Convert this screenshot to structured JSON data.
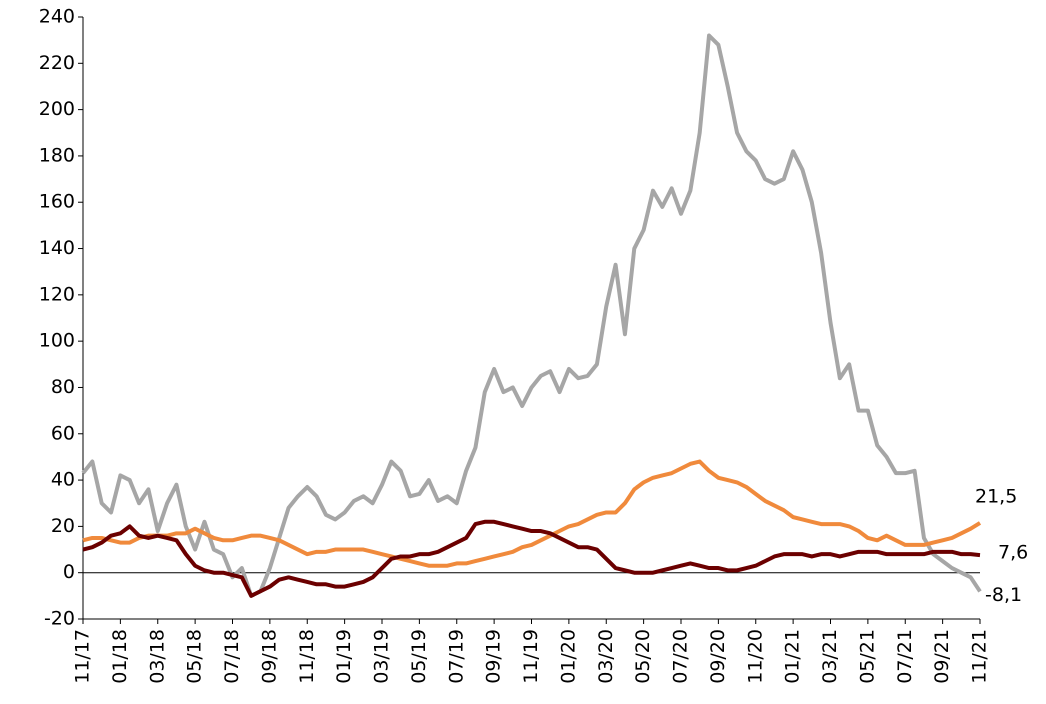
{
  "chart_data": {
    "type": "line",
    "categories": [
      "11/17",
      null,
      null,
      null,
      "01/18",
      null,
      null,
      null,
      "03/18",
      null,
      null,
      null,
      "05/18",
      null,
      null,
      null,
      "07/18",
      null,
      null,
      null,
      "09/18",
      null,
      null,
      null,
      "11/18",
      null,
      null,
      null,
      "01/19",
      null,
      null,
      null,
      "03/19",
      null,
      null,
      null,
      "05/19",
      null,
      null,
      null,
      "07/19",
      null,
      null,
      null,
      "09/19",
      null,
      null,
      null,
      "11/19",
      null,
      null,
      null,
      "01/20",
      null,
      null,
      null,
      "03/20",
      null,
      null,
      null,
      "05/20",
      null,
      null,
      null,
      "07/20",
      null,
      null,
      null,
      "09/20",
      null,
      null,
      null,
      "11/20",
      null,
      null,
      null,
      "01/21",
      null,
      null,
      null,
      "03/21",
      null,
      null,
      null,
      "05/21",
      null,
      null,
      null,
      "07/21",
      null,
      null,
      null,
      "09/21",
      null,
      null,
      null,
      "11/21"
    ],
    "series": [
      {
        "color": "#a6a6a6",
        "values": [
          43,
          48,
          30,
          26,
          42,
          40,
          30,
          36,
          18,
          30,
          38,
          20,
          10,
          22,
          10,
          8,
          -2,
          2,
          -10,
          -8,
          2,
          15,
          28,
          33,
          37,
          33,
          25,
          23,
          26,
          31,
          33,
          30,
          38,
          48,
          44,
          33,
          34,
          40,
          31,
          33,
          30,
          44,
          54,
          78,
          88,
          78,
          80,
          72,
          80,
          85,
          87,
          78,
          88,
          84,
          85,
          90,
          115,
          133,
          103,
          140,
          148,
          165,
          158,
          166,
          155,
          165,
          190,
          232,
          228,
          210,
          190,
          182,
          178,
          170,
          168,
          170,
          182,
          174,
          160,
          138,
          108,
          84,
          90,
          70,
          70,
          55,
          50,
          43,
          43,
          44,
          15,
          8,
          5,
          2,
          0,
          -2,
          -8.1
        ],
        "value_labels": [
          null,
          null,
          null,
          null,
          null,
          null,
          null,
          null,
          null,
          null,
          null,
          null,
          null,
          null,
          null,
          null,
          null,
          null,
          null,
          null,
          null,
          null,
          null,
          null,
          null,
          null,
          null,
          null,
          null,
          null,
          null,
          null,
          null,
          null,
          null,
          null,
          null,
          null,
          null,
          null,
          null,
          null,
          null,
          null,
          null,
          null,
          null,
          null,
          null,
          null,
          null,
          null,
          null,
          null,
          null,
          null,
          null,
          null,
          null,
          null,
          null,
          null,
          null,
          null,
          null,
          null,
          null,
          null,
          null,
          null,
          null,
          null,
          null,
          null,
          null,
          null,
          null,
          null,
          null,
          null,
          null,
          null,
          null,
          null,
          null,
          null,
          null,
          null,
          null,
          null,
          null,
          null,
          null,
          null,
          null,
          null,
          "-8,1"
        ]
      },
      {
        "color": "#f08a3c",
        "values": [
          14,
          15,
          15,
          14,
          13,
          13,
          15,
          16,
          16,
          16,
          17,
          17,
          19,
          17,
          15,
          14,
          14,
          15,
          16,
          16,
          15,
          14,
          12,
          10,
          8,
          9,
          9,
          10,
          10,
          10,
          10,
          9,
          8,
          7,
          6,
          5,
          4,
          3,
          3,
          3,
          4,
          4,
          5,
          6,
          7,
          8,
          9,
          11,
          12,
          14,
          16,
          18,
          20,
          21,
          23,
          25,
          26,
          26,
          30,
          36,
          39,
          41,
          42,
          43,
          45,
          47,
          48,
          44,
          41,
          40,
          39,
          37,
          34,
          31,
          29,
          27,
          24,
          23,
          22,
          21,
          21,
          21,
          20,
          18,
          15,
          14,
          16,
          14,
          12,
          12,
          12,
          13,
          14,
          15,
          17,
          19,
          21.5
        ],
        "value_labels": [
          null,
          null,
          null,
          null,
          null,
          null,
          null,
          null,
          null,
          null,
          null,
          null,
          null,
          null,
          null,
          null,
          null,
          null,
          null,
          null,
          null,
          null,
          null,
          null,
          null,
          null,
          null,
          null,
          null,
          null,
          null,
          null,
          null,
          null,
          null,
          null,
          null,
          null,
          null,
          null,
          null,
          null,
          null,
          null,
          null,
          null,
          null,
          null,
          null,
          null,
          null,
          null,
          null,
          null,
          null,
          null,
          null,
          null,
          null,
          null,
          null,
          null,
          null,
          null,
          null,
          null,
          null,
          null,
          null,
          null,
          null,
          null,
          null,
          null,
          null,
          null,
          null,
          null,
          null,
          null,
          null,
          null,
          null,
          null,
          null,
          null,
          null,
          null,
          null,
          null,
          null,
          null,
          null,
          null,
          null,
          null,
          "21,5"
        ]
      },
      {
        "color": "#6b0000",
        "values": [
          10,
          11,
          13,
          16,
          17,
          20,
          16,
          15,
          16,
          15,
          14,
          8,
          3,
          1,
          0,
          0,
          -1,
          -2,
          -10,
          -8,
          -6,
          -3,
          -2,
          -3,
          -4,
          -5,
          -5,
          -6,
          -6,
          -5,
          -4,
          -2,
          2,
          6,
          7,
          7,
          8,
          8,
          9,
          11,
          13,
          15,
          21,
          22,
          22,
          21,
          20,
          19,
          18,
          18,
          17,
          15,
          13,
          11,
          11,
          10,
          6,
          2,
          1,
          0,
          0,
          0,
          1,
          2,
          3,
          4,
          3,
          2,
          2,
          1,
          1,
          2,
          3,
          5,
          7,
          8,
          8,
          8,
          7,
          8,
          8,
          7,
          8,
          9,
          9,
          9,
          8,
          8,
          8,
          8,
          8,
          9,
          9,
          9,
          8,
          8,
          7.6
        ],
        "value_labels": [
          null,
          null,
          null,
          null,
          null,
          null,
          null,
          null,
          null,
          null,
          null,
          null,
          null,
          null,
          null,
          null,
          null,
          null,
          null,
          null,
          null,
          null,
          null,
          null,
          null,
          null,
          null,
          null,
          null,
          null,
          null,
          null,
          null,
          null,
          null,
          null,
          null,
          null,
          null,
          null,
          null,
          null,
          null,
          null,
          null,
          null,
          null,
          null,
          null,
          null,
          null,
          null,
          null,
          null,
          null,
          null,
          null,
          null,
          null,
          null,
          null,
          null,
          null,
          null,
          null,
          null,
          null,
          null,
          null,
          null,
          null,
          null,
          null,
          null,
          null,
          null,
          null,
          null,
          null,
          null,
          null,
          null,
          null,
          null,
          null,
          null,
          null,
          null,
          null,
          null,
          null,
          null,
          null,
          null,
          null,
          null,
          "7,6"
        ]
      }
    ],
    "ylim": [
      -20,
      240
    ],
    "yticks": [
      -20,
      0,
      20,
      40,
      60,
      80,
      100,
      120,
      140,
      160,
      180,
      200,
      220,
      240
    ]
  }
}
